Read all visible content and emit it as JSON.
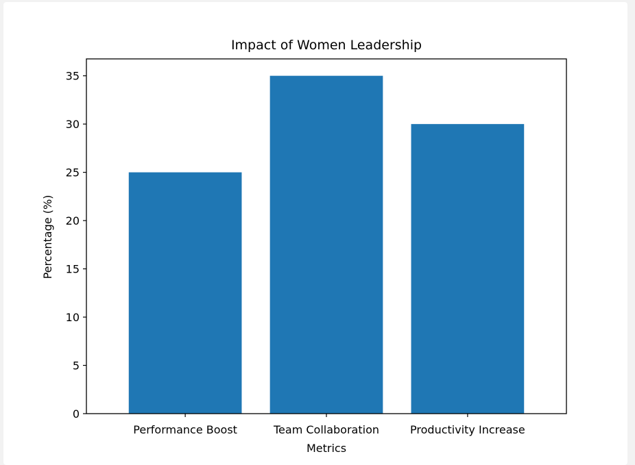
{
  "chart_data": {
    "type": "bar",
    "title": "Impact of Women Leadership",
    "xlabel": "Metrics",
    "ylabel": "Percentage (%)",
    "categories": [
      "Performance Boost",
      "Team Collaboration",
      "Productivity Increase"
    ],
    "values": [
      25,
      35,
      30
    ],
    "ylim": [
      0,
      36.75
    ],
    "yticks": [
      0,
      5,
      10,
      15,
      20,
      25,
      30,
      35
    ],
    "bar_color": "#1f77b4",
    "grid": false,
    "legend": "none"
  }
}
